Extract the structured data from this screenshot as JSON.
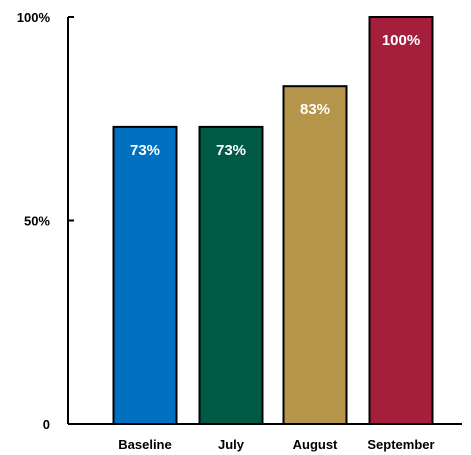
{
  "chart_data": {
    "type": "bar",
    "title": "",
    "xlabel": "",
    "ylabel": "",
    "categories": [
      "Baseline",
      "July",
      "August",
      "September"
    ],
    "values": [
      73,
      73,
      83,
      100
    ],
    "value_labels": [
      "73%",
      "73%",
      "83%",
      "100%"
    ],
    "colors": [
      "#0070c0",
      "#005a46",
      "#b5954a",
      "#a51f3c"
    ],
    "ylim": [
      0,
      100
    ],
    "yticks": [
      {
        "value": 0,
        "label": "0"
      },
      {
        "value": 50,
        "label": "50%"
      },
      {
        "value": 100,
        "label": "100%"
      }
    ],
    "grid": false,
    "legend": "none"
  }
}
